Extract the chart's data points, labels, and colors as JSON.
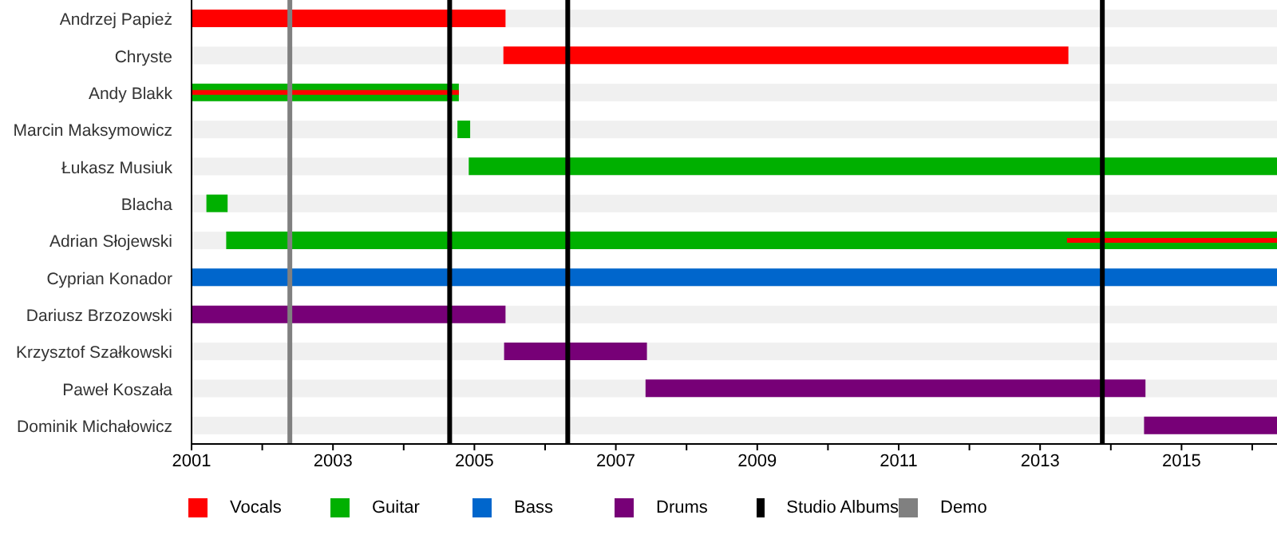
{
  "chart_data": {
    "type": "bar",
    "orientation": "horizontal",
    "categories": [
      "Andrzej Papież",
      "Chryste",
      "Andy Blakk",
      "Marcin Maksymowicz",
      "Łukasz Musiuk",
      "Blacha",
      "Adrian Słojewski",
      "Cyprian Konador",
      "Dariusz Brzozowski",
      "Krzysztof Szałkowski",
      "Paweł Koszała",
      "Dominik Michałowicz"
    ],
    "series": [
      {
        "name": "Vocals",
        "color": "#ff0000",
        "base": [
          2001,
          2005.41,
          null,
          null,
          null,
          null,
          null,
          null,
          null,
          null,
          null,
          null
        ],
        "values": [
          4.44,
          7.99,
          null,
          null,
          null,
          null,
          null,
          null,
          null,
          null,
          null,
          null
        ]
      },
      {
        "name": "Guitar",
        "color": "#00b000",
        "base": [
          null,
          null,
          2001,
          2004.76,
          2004.92,
          2001.21,
          2001.49,
          null,
          null,
          null,
          null,
          null
        ],
        "values": [
          null,
          null,
          3.78,
          0.18,
          11.43,
          0.3,
          14.86,
          null,
          null,
          null,
          null,
          null
        ]
      },
      {
        "name": "Bass",
        "color": "#0066cc",
        "base": [
          null,
          null,
          null,
          null,
          null,
          null,
          null,
          2001,
          null,
          null,
          null,
          null
        ],
        "values": [
          null,
          null,
          null,
          null,
          null,
          null,
          null,
          15.35,
          null,
          null,
          null,
          null
        ]
      },
      {
        "name": "Drums",
        "color": "#770077",
        "base": [
          null,
          null,
          null,
          null,
          null,
          null,
          null,
          null,
          2001,
          2005.42,
          2007.42,
          2014.47
        ],
        "values": [
          null,
          null,
          null,
          null,
          null,
          null,
          null,
          null,
          4.44,
          2.02,
          7.07,
          1.88
        ]
      },
      {
        "color": "#ff0000",
        "base": [
          null,
          null,
          2001,
          null,
          null,
          null,
          2013.38,
          null,
          null,
          null,
          null,
          null
        ],
        "values": [
          null,
          null,
          3.78,
          null,
          null,
          null,
          2.97,
          null,
          null,
          null,
          null,
          null
        ]
      }
    ],
    "xlim": [
      2001,
      2016.35
    ],
    "xticks": [
      2001,
      {
        "value": 2002,
        "label": null
      },
      2003,
      {
        "value": 2004,
        "label": null
      },
      2005,
      {
        "value": 2006,
        "label": null
      },
      2007,
      {
        "value": 2008,
        "label": null
      },
      2009,
      {
        "value": 2010,
        "label": null
      },
      2011,
      {
        "value": 2012,
        "label": null
      },
      2013,
      {
        "value": 2014,
        "label": null
      },
      2015,
      {
        "value": 2016,
        "label": null
      }
    ],
    "ref_lines": [
      {
        "axis": "x",
        "value": 2004.65,
        "label": "Studio Albums",
        "color": "#000000"
      },
      {
        "axis": "x",
        "value": 2006.32,
        "color": "#000000"
      },
      {
        "axis": "x",
        "value": 2013.88,
        "color": "#000000"
      },
      {
        "axis": "x",
        "value": 2002.39,
        "label": "Demo",
        "color": "#808080"
      }
    ],
    "legend": "bottom"
  }
}
